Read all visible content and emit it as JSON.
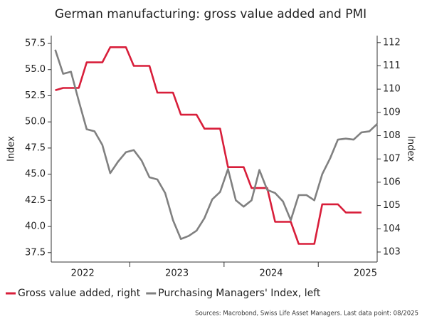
{
  "chart_data": {
    "type": "line",
    "title": "German manufacturing: gross value added and PMI",
    "y_label": "Index",
    "y2_label": "Index",
    "source": "Sources: Macrobond, Swiss Life Asset Managers. Last data point: 08/2025",
    "x": [
      2022.208,
      2022.292,
      2022.375,
      2022.458,
      2022.542,
      2022.625,
      2022.708,
      2022.792,
      2022.875,
      2022.958,
      2023.042,
      2023.125,
      2023.208,
      2023.292,
      2023.375,
      2023.458,
      2023.542,
      2023.625,
      2023.708,
      2023.792,
      2023.875,
      2023.958,
      2024.042,
      2024.125,
      2024.208,
      2024.292,
      2024.375,
      2024.458,
      2024.542,
      2024.625,
      2024.708,
      2024.792,
      2024.875,
      2024.958,
      2025.042,
      2025.125,
      2025.208,
      2025.292,
      2025.375,
      2025.458,
      2025.542,
      2025.625
    ],
    "xlim": [
      2022.166,
      2025.625
    ],
    "xticks": [
      {
        "value": 2022.5,
        "label": "2022"
      },
      {
        "value": 2023.5,
        "label": "2023"
      },
      {
        "value": 2024.5,
        "label": "2024"
      },
      {
        "value": 2025.5,
        "label": "2025"
      }
    ],
    "x_minor_ticks": [
      2023,
      2024,
      2025
    ],
    "ylim": [
      36.6,
      58.25
    ],
    "yticks": [
      37.5,
      {
        "value": 40,
        "label": "40.0"
      },
      42.5,
      {
        "value": 45,
        "label": "45.0"
      },
      47.5,
      {
        "value": 50,
        "label": "50.0"
      },
      52.5,
      {
        "value": 55,
        "label": "55.0"
      },
      57.5
    ],
    "y2lim": [
      102.57,
      112.3
    ],
    "y2ticks": [
      103,
      104,
      105,
      106,
      107,
      108,
      109,
      110,
      111,
      112
    ],
    "legend": "bottom",
    "series": [
      {
        "name": "Gross value added, right",
        "color": "#d81e3a",
        "axis": "y2",
        "values": [
          109.95,
          110.05,
          110.05,
          110.05,
          111.15,
          111.15,
          111.15,
          111.8,
          111.8,
          111.8,
          111.0,
          111.0,
          111.0,
          109.85,
          109.85,
          109.85,
          108.9,
          108.9,
          108.9,
          108.3,
          108.3,
          108.3,
          106.65,
          106.65,
          106.65,
          105.75,
          105.75,
          105.75,
          104.3,
          104.3,
          104.3,
          103.35,
          103.35,
          103.35,
          105.05,
          105.05,
          105.05,
          104.7,
          104.7,
          104.7,
          null,
          null
        ]
      },
      {
        "name": "Purchasing Managers' Index, left",
        "color": "#808080",
        "values": [
          56.9,
          54.6,
          54.8,
          52.0,
          49.3,
          49.1,
          47.8,
          45.1,
          46.2,
          47.1,
          47.3,
          46.3,
          44.7,
          44.5,
          43.2,
          40.6,
          38.8,
          39.1,
          39.6,
          40.8,
          42.6,
          43.3,
          45.5,
          42.5,
          41.9,
          42.5,
          45.4,
          43.5,
          43.2,
          42.4,
          40.6,
          43.0,
          43.0,
          42.5,
          45.0,
          46.5,
          48.3,
          48.4,
          48.3,
          49.0,
          49.1,
          49.8
        ]
      }
    ]
  }
}
